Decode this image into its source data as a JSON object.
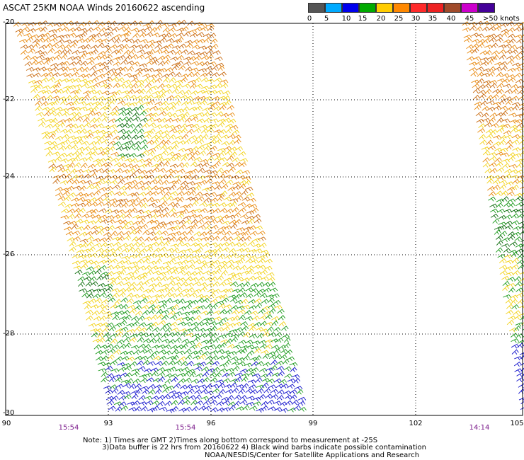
{
  "header": {
    "title": "ASCAT 25KM NOAA Winds 20160622 ascending"
  },
  "colorbar": {
    "colors": [
      "#555555",
      "#00aaff",
      "#0000ee",
      "#00aa00",
      "#ffcc00",
      "#ff8800",
      "#ff2a2a",
      "#ee2222",
      "#a04a2a",
      "#cc00cc",
      "#440099"
    ],
    "labels": [
      "0",
      "5",
      "10",
      "15",
      "20",
      "25",
      "30",
      "35",
      "40",
      "45",
      ">50 knots"
    ]
  },
  "axes": {
    "lat_labels": [
      "-20",
      "-22",
      "-24",
      "-26",
      "-28",
      "-30"
    ],
    "lon_labels": [
      "90",
      "93",
      "96",
      "99",
      "102",
      "105"
    ],
    "time_labels": [
      "15:54",
      "15:54",
      "14:14"
    ]
  },
  "notes": {
    "line1": "Note: 1) Times are GMT 2)Times along bottom correspond to measurement at -25S",
    "line2": "3)Data buffer is 22 hrs from 20160622 4) Black wind barbs indicate possible contamination",
    "line3": "NOAA/NESDIS/Center for Satellite Applications and Research"
  },
  "legend_colors": {
    "green": "#1a9a1a",
    "blue": "#1414cc",
    "yellow": "#f2d21a",
    "orange": "#e88a10",
    "darkorange": "#c86a10",
    "darkgreen": "#0a6a0a"
  }
}
